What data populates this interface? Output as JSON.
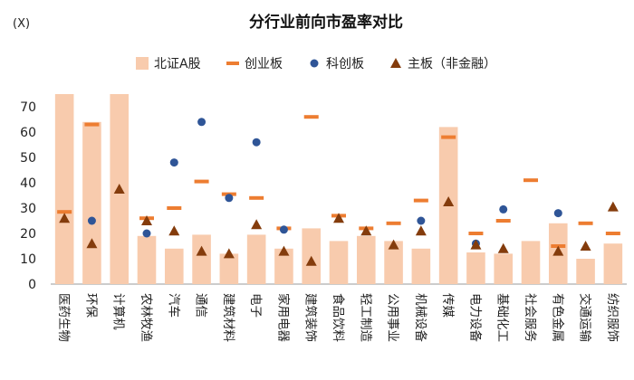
{
  "chart_data": {
    "type": "bar",
    "title": "分行业前向市盈率对比",
    "unit_label": "(X)",
    "ylim": [
      0,
      75
    ],
    "yticks": [
      0,
      10,
      20,
      30,
      40,
      50,
      60,
      70
    ],
    "grid": false,
    "legend_position": "top",
    "categories": [
      "医药生物",
      "环保",
      "计算机",
      "农林牧渔",
      "汽车",
      "通信",
      "建筑材料",
      "电子",
      "家用电器",
      "建筑装饰",
      "食品饮料",
      "轻工制造",
      "公用事业",
      "机械设备",
      "传媒",
      "电力设备",
      "基础化工",
      "社会服务",
      "有色金属",
      "交通运输",
      "纺织服饰"
    ],
    "series": [
      {
        "name": "北证A股",
        "kind": "bar",
        "color": "#F8CBAD",
        "values": [
          80,
          64,
          80,
          19,
          14,
          19.5,
          12,
          19.5,
          14,
          22,
          17,
          19,
          17,
          14,
          62,
          12.5,
          12,
          17,
          24,
          10,
          16
        ]
      },
      {
        "name": "创业板",
        "kind": "dash",
        "color": "#ED7D31",
        "values": [
          28.5,
          63,
          null,
          26,
          30,
          40.5,
          35.5,
          34,
          22,
          66,
          27,
          22,
          24,
          33,
          58,
          20,
          25,
          41,
          15,
          24,
          20
        ]
      },
      {
        "name": "科创板",
        "kind": "dot",
        "color": "#2F5597",
        "values": [
          null,
          25,
          null,
          20,
          48,
          64,
          34,
          56,
          21.5,
          null,
          null,
          null,
          null,
          25,
          null,
          16,
          29.5,
          null,
          28,
          null,
          null
        ]
      },
      {
        "name": "主板（非金融）",
        "kind": "triangle",
        "color": "#843C0C",
        "values": [
          26,
          16,
          37.5,
          25,
          21,
          13,
          12,
          23.5,
          13,
          9,
          26,
          21,
          15.5,
          21,
          32.5,
          15.5,
          14,
          null,
          13,
          15,
          30.5
        ]
      }
    ]
  }
}
